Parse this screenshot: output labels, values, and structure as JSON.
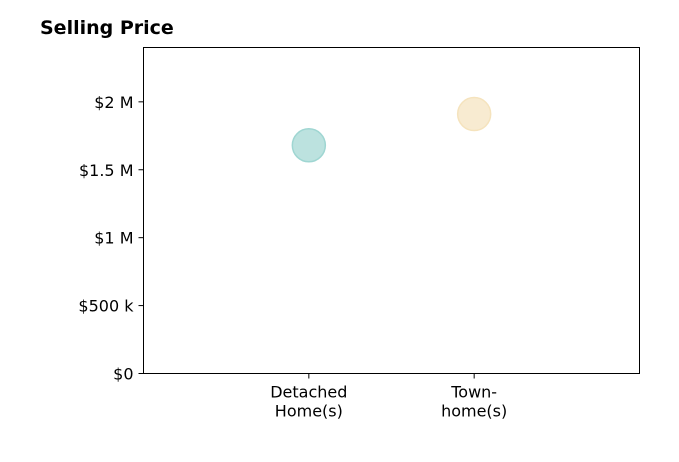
{
  "chart_data": {
    "type": "scatter",
    "title": "Selling Price",
    "xlabel": "",
    "ylabel": "",
    "categories": [
      [
        "Detached",
        "Home(s)"
      ],
      [
        "Town-",
        "home(s)"
      ]
    ],
    "series": [
      {
        "values": [
          1680000,
          1910000
        ],
        "colors": [
          "#9fd6d2",
          "#f5e3bd"
        ]
      }
    ],
    "xlim": [
      0,
      3
    ],
    "ylim": [
      0,
      2400000
    ],
    "yticks": [
      {
        "value": 0,
        "label": "$0"
      },
      {
        "value": 500000,
        "label": "$500 k"
      },
      {
        "value": 1000000,
        "label": "$1 M"
      },
      {
        "value": 1500000,
        "label": "$1.5 M"
      },
      {
        "value": 2000000,
        "label": "$2 M"
      }
    ],
    "grid": false,
    "legend": "none"
  }
}
